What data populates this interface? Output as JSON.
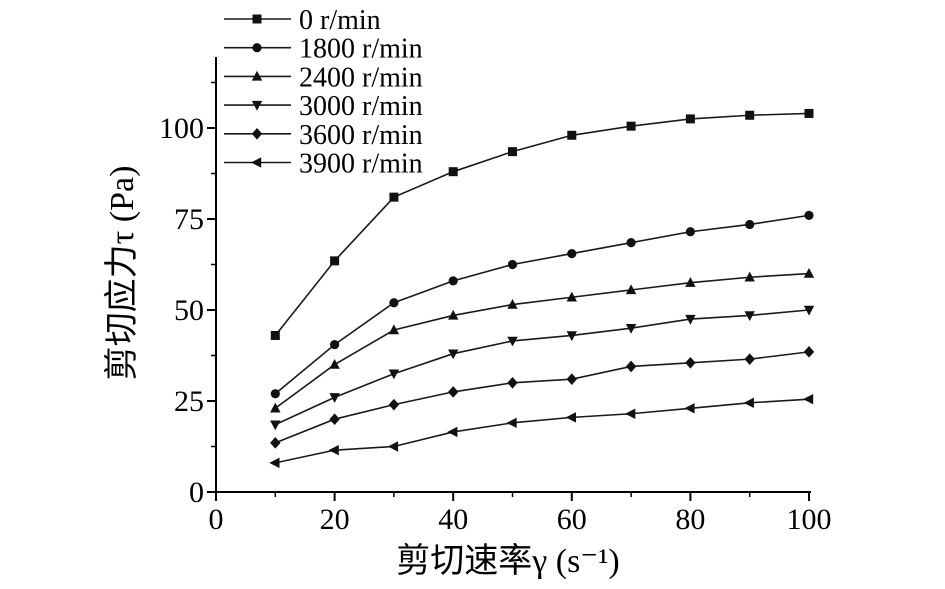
{
  "chart_data": {
    "type": "line",
    "title": "",
    "xlabel": "剪切速率γ (s⁻¹)",
    "ylabel": "剪切应力τ (Pa)",
    "x_ticks": [
      0,
      20,
      40,
      60,
      80,
      100
    ],
    "x_minor_ticks": [
      10,
      30,
      50,
      70,
      90
    ],
    "y_ticks": [
      0,
      25,
      50,
      75,
      100
    ],
    "y_minor_ticks": [
      12.5,
      37.5,
      62.5,
      87.5,
      112.5
    ],
    "xlim": [
      0,
      100
    ],
    "ylim": [
      0,
      100
    ],
    "grid": false,
    "legend_position": "top-left",
    "line_color": "#1a1a1a",
    "marker_color": "#111111",
    "x": [
      10,
      20,
      30,
      40,
      50,
      60,
      70,
      80,
      90,
      100
    ],
    "series": [
      {
        "name": "0 r/min",
        "marker": "square",
        "values": [
          43,
          63.5,
          81,
          88,
          93.5,
          98,
          100.5,
          102.5,
          103.5,
          104
        ]
      },
      {
        "name": "1800 r/min",
        "marker": "circle",
        "values": [
          27,
          40.5,
          52,
          58,
          62.5,
          65.5,
          68.5,
          71.5,
          73.5,
          76
        ]
      },
      {
        "name": "2400 r/min",
        "marker": "triangle-up",
        "values": [
          23,
          35,
          44.5,
          48.5,
          51.5,
          53.5,
          55.5,
          57.5,
          59,
          60
        ]
      },
      {
        "name": "3000 r/min",
        "marker": "triangle-down",
        "values": [
          18.5,
          26,
          32.5,
          38,
          41.5,
          43,
          45,
          47.5,
          48.5,
          50
        ]
      },
      {
        "name": "3600 r/min",
        "marker": "diamond",
        "values": [
          13.5,
          20,
          24,
          27.5,
          30,
          31,
          34.5,
          35.5,
          36.5,
          38.5
        ]
      },
      {
        "name": "3900 r/min",
        "marker": "triangle-left",
        "values": [
          8,
          11.5,
          12.5,
          16.5,
          19,
          20.5,
          21.5,
          23,
          24.5,
          25.5
        ]
      }
    ]
  }
}
